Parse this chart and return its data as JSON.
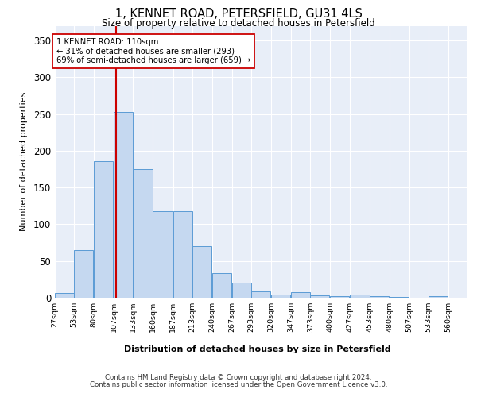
{
  "title": "1, KENNET ROAD, PETERSFIELD, GU31 4LS",
  "subtitle": "Size of property relative to detached houses in Petersfield",
  "xlabel": "Distribution of detached houses by size in Petersfield",
  "ylabel": "Number of detached properties",
  "bar_color": "#c5d8f0",
  "bar_edge_color": "#5b9bd5",
  "bar_heights": [
    7,
    65,
    186,
    253,
    175,
    118,
    118,
    70,
    34,
    21,
    9,
    4,
    8,
    3,
    2,
    4,
    2,
    1,
    0,
    2
  ],
  "bin_labels": [
    "27sqm",
    "53sqm",
    "80sqm",
    "107sqm",
    "133sqm",
    "160sqm",
    "187sqm",
    "213sqm",
    "240sqm",
    "267sqm",
    "293sqm",
    "320sqm",
    "347sqm",
    "373sqm",
    "400sqm",
    "427sqm",
    "453sqm",
    "480sqm",
    "507sqm",
    "533sqm",
    "560sqm"
  ],
  "bin_edges": [
    27,
    53,
    80,
    107,
    133,
    160,
    187,
    213,
    240,
    267,
    293,
    320,
    347,
    373,
    400,
    427,
    453,
    480,
    507,
    533,
    560
  ],
  "property_size": 110,
  "vline_color": "#cc0000",
  "annotation_text": "1 KENNET ROAD: 110sqm\n← 31% of detached houses are smaller (293)\n69% of semi-detached houses are larger (659) →",
  "annotation_box_color": "#ffffff",
  "annotation_box_edge_color": "#cc0000",
  "ylim": [
    0,
    370
  ],
  "yticks": [
    0,
    50,
    100,
    150,
    200,
    250,
    300,
    350
  ],
  "background_color": "#e8eef8",
  "grid_color": "#ffffff",
  "footer_line1": "Contains HM Land Registry data © Crown copyright and database right 2024.",
  "footer_line2": "Contains public sector information licensed under the Open Government Licence v3.0."
}
